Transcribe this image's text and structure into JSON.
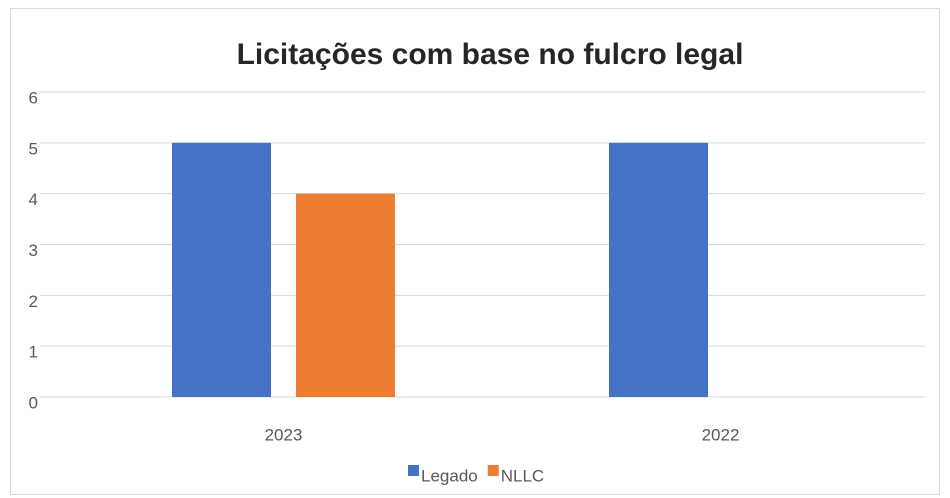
{
  "chart_data": {
    "type": "bar",
    "title": "Licitações com base no fulcro legal",
    "categories": [
      "2023",
      "2022"
    ],
    "series": [
      {
        "name": "Legado",
        "color": "#4472c4",
        "values": [
          5,
          5
        ]
      },
      {
        "name": "NLLC",
        "color": "#ed7d31",
        "values": [
          4,
          null
        ]
      }
    ],
    "ylim": [
      0,
      6
    ],
    "yticks": [
      0,
      1,
      2,
      3,
      4,
      5,
      6
    ],
    "grid": true,
    "legend": "bottom"
  }
}
